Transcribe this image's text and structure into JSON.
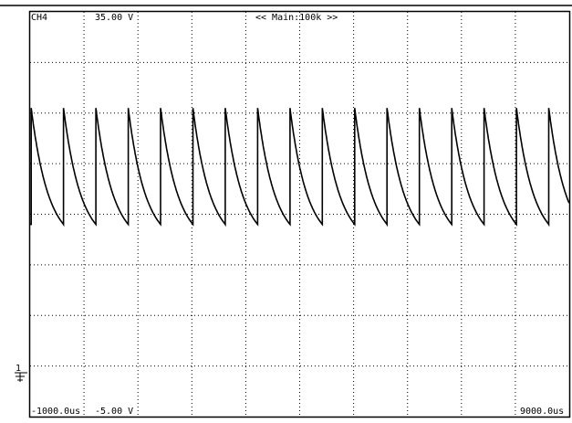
{
  "chart_data": {
    "type": "line",
    "channel": "CH4",
    "y_top_label": "35.00 V",
    "y_bottom_label": "-5.00 V",
    "x_left_label": "-1000.0us",
    "x_right_label": "9000.0us",
    "timebase_label": "<< Main:100k >>",
    "xlim": [
      -1000,
      9000
    ],
    "ylim": [
      -5,
      35
    ],
    "grid": "dotted 10x8",
    "ground_marker_level": -3,
    "series": [
      {
        "waveform": "repeating exponential decay (sawtooth)",
        "period_us": 600,
        "first_peak_us": -980,
        "peak_v": 25.5,
        "trough_v": 14,
        "decay_time_constant_us": 320
      }
    ]
  }
}
